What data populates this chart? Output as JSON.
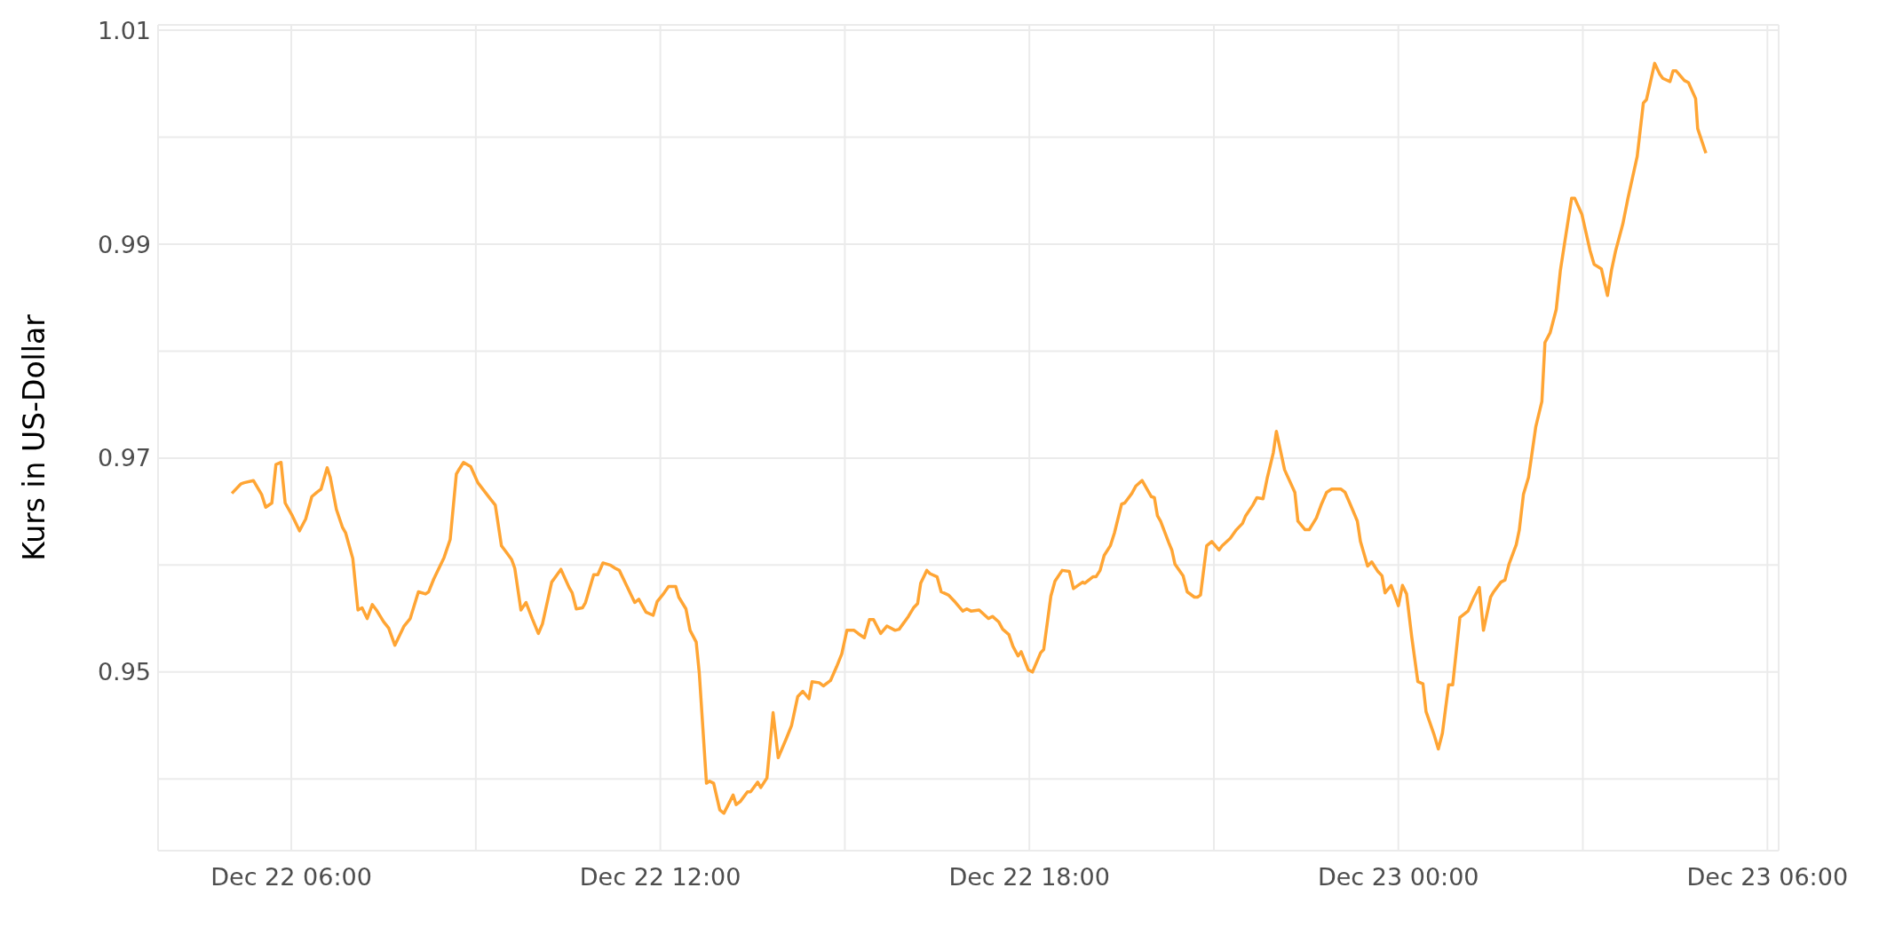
{
  "chart_data": {
    "type": "line",
    "ylabel": "Kurs in US-Dollar",
    "x": [
      "--12-22T05:02",
      "--12-22T05:11",
      "--12-22T05:14",
      "--12-22T05:23",
      "--12-22T05:31",
      "--12-22T05:35",
      "--12-22T05:41",
      "--12-22T05:45",
      "--12-22T05:50",
      "--12-22T05:54",
      "--12-22T06:01",
      "--12-22T06:08",
      "--12-22T06:14",
      "--12-22T06:20",
      "--12-22T06:25",
      "--12-22T06:29",
      "--12-22T06:35",
      "--12-22T06:38",
      "--12-22T06:44",
      "--12-22T06:50",
      "--12-22T06:53",
      "--12-22T07:00",
      "--12-22T07:05",
      "--12-22T07:09",
      "--12-22T07:14",
      "--12-22T07:19",
      "--12-22T07:23",
      "--12-22T07:30",
      "--12-22T07:35",
      "--12-22T07:41",
      "--12-22T07:44",
      "--12-22T07:50",
      "--12-22T07:56",
      "--12-22T08:04",
      "--12-22T08:11",
      "--12-22T08:14",
      "--12-22T08:19",
      "--12-22T08:29",
      "--12-22T08:35",
      "--12-22T08:41",
      "--12-22T08:44",
      "--12-22T08:48",
      "--12-22T08:55",
      "--12-22T09:02",
      "--12-22T09:14",
      "--12-22T09:19",
      "--12-22T09:25",
      "--12-22T09:29",
      "--12-22T09:35",
      "--12-22T09:38",
      "--12-22T09:44",
      "--12-22T09:49",
      "--12-22T09:55",
      "--12-22T10:01",
      "--12-22T10:05",
      "--12-22T10:14",
      "--12-22T10:20",
      "--12-22T10:23",
      "--12-22T10:31",
      "--12-22T10:34",
      "--12-22T10:38",
      "--12-22T10:44",
      "--12-22T10:47",
      "--12-22T10:55",
      "--12-22T10:59",
      "--12-22T11:04",
      "--12-22T11:11",
      "--12-22T11:16",
      "--12-22T11:20",
      "--12-22T11:27",
      "--12-22T11:35",
      "--12-22T11:39",
      "--12-22T11:46",
      "--12-22T11:53",
      "--12-22T11:57",
      "--12-22T12:03",
      "--12-22T12:08",
      "--12-22T12:15",
      "--12-22T12:18",
      "--12-22T12:25",
      "--12-22T12:29",
      "--12-22T12:35",
      "--12-22T12:38",
      "--12-22T12:45",
      "--12-22T12:48",
      "--12-22T12:52",
      "--12-22T12:58",
      "--12-22T13:02",
      "--12-22T13:11",
      "--12-22T13:14",
      "--12-22T13:18",
      "--12-22T13:25",
      "--12-22T13:28",
      "--12-22T13:35",
      "--12-22T13:38",
      "--12-22T13:44",
      "--12-22T13:50",
      "--12-22T13:55",
      "--12-22T14:03",
      "--12-22T14:08",
      "--12-22T14:14",
      "--12-22T14:19",
      "--12-22T14:25",
      "--12-22T14:28",
      "--12-22T14:35",
      "--12-22T14:39",
      "--12-22T14:46",
      "--12-22T14:52",
      "--12-22T14:57",
      "--12-22T15:02",
      "--12-22T15:09",
      "--12-22T15:13",
      "--12-22T15:19",
      "--12-22T15:24",
      "--12-22T15:28",
      "--12-22T15:35",
      "--12-22T15:41",
      "--12-22T15:49",
      "--12-22T15:53",
      "--12-22T16:02",
      "--12-22T16:07",
      "--12-22T16:11",
      "--12-22T16:14",
      "--12-22T16:20",
      "--12-22T16:23",
      "--12-22T16:30",
      "--12-22T16:34",
      "--12-22T16:41",
      "--12-22T16:48",
      "--12-22T16:55",
      "--12-22T16:59",
      "--12-22T17:03",
      "--12-22T17:11",
      "--12-22T17:20",
      "--12-22T17:24",
      "--12-22T17:30",
      "--12-22T17:34",
      "--12-22T17:40",
      "--12-22T17:44",
      "--12-22T17:49",
      "--12-22T17:52",
      "--12-22T17:59",
      "--12-22T18:03",
      "--12-22T18:11",
      "--12-22T18:14",
      "--12-22T18:21",
      "--12-22T18:25",
      "--12-22T18:32",
      "--12-22T18:39",
      "--12-22T18:43",
      "--12-22T18:52",
      "--12-22T18:54",
      "--12-22T19:02",
      "--12-22T19:05",
      "--12-22T19:09",
      "--12-22T19:13",
      "--12-22T19:19",
      "--12-22T19:23",
      "--12-22T19:30",
      "--12-22T19:33",
      "--12-22T19:40",
      "--12-22T19:44",
      "--12-22T19:50",
      "--12-22T19:59",
      "--12-22T20:02",
      "--12-22T20:05",
      "--12-22T20:08",
      "--12-22T20:16",
      "--12-22T20:19",
      "--12-22T20:22",
      "--12-22T20:30",
      "--12-22T20:34",
      "--12-22T20:41",
      "--12-22T20:44",
      "--12-22T20:47",
      "--12-22T20:53",
      "--12-22T20:58",
      "--12-22T21:05",
      "--12-22T21:08",
      "--12-22T21:16",
      "--12-22T21:22",
      "--12-22T21:28",
      "--12-22T21:31",
      "--12-22T21:38",
      "--12-22T21:42",
      "--12-22T21:48",
      "--12-22T21:52",
      "--12-22T21:58",
      "--12-22T22:01",
      "--12-22T22:09",
      "--12-22T22:19",
      "--12-22T22:22",
      "--12-22T22:29",
      "--12-22T22:33",
      "--12-22T22:40",
      "--12-22T22:45",
      "--12-22T22:50",
      "--12-22T22:55",
      "--12-22T23:04",
      "--12-22T23:08",
      "--12-22T23:13",
      "--12-22T23:20",
      "--12-22T23:23",
      "--12-22T23:30",
      "--12-22T23:34",
      "--12-22T23:40",
      "--12-22T23:44",
      "--12-22T23:47",
      "--12-22T23:53",
      "--12-23T00:00",
      "--12-23T00:04",
      "--12-23T00:08",
      "--12-23T00:13",
      "--12-23T00:19",
      "--12-23T00:24",
      "--12-23T00:27",
      "--12-23T00:35",
      "--12-23T00:39",
      "--12-23T00:43",
      "--12-23T00:49",
      "--12-23T00:53",
      "--12-23T01:00",
      "--12-23T01:08",
      "--12-23T01:14",
      "--12-23T01:19",
      "--12-23T01:23",
      "--12-23T01:30",
      "--12-23T01:33",
      "--12-23T01:40",
      "--12-23T01:44",
      "--12-23T01:48",
      "--12-23T01:55",
      "--12-23T01:58",
      "--12-23T02:02",
      "--12-23T02:07",
      "--12-23T02:14",
      "--12-23T02:20",
      "--12-23T02:23",
      "--12-23T02:28",
      "--12-23T02:34",
      "--12-23T02:38",
      "--12-23T02:42",
      "--12-23T02:49",
      "--12-23T02:52",
      "--12-23T02:59",
      "--12-23T03:07",
      "--12-23T03:11",
      "--12-23T03:18",
      "--12-23T03:24",
      "--12-23T03:28",
      "--12-23T03:32",
      "--12-23T03:39",
      "--12-23T03:44",
      "--12-23T03:53",
      "--12-23T03:59",
      "--12-23T04:02",
      "--12-23T04:10",
      "--12-23T04:15",
      "--12-23T04:18",
      "--12-23T04:25",
      "--12-23T04:28",
      "--12-23T04:31",
      "--12-23T04:39",
      "--12-23T04:43",
      "--12-23T04:50",
      "--12-23T04:52",
      "--12-23T05:00"
    ],
    "series": [
      {
        "color": "#ffa534",
        "values": [
          0.9667,
          0.9676,
          0.9677,
          0.9679,
          0.9666,
          0.9654,
          0.9658,
          0.9694,
          0.9696,
          0.9658,
          0.9646,
          0.9632,
          0.9643,
          0.9664,
          0.9668,
          0.9671,
          0.9691,
          0.9682,
          0.9652,
          0.9635,
          0.963,
          0.9606,
          0.9558,
          0.956,
          0.955,
          0.9563,
          0.9558,
          0.9547,
          0.9541,
          0.9525,
          0.9531,
          0.9543,
          0.955,
          0.9575,
          0.9573,
          0.9575,
          0.9587,
          0.9607,
          0.9624,
          0.9685,
          0.969,
          0.9696,
          0.9692,
          0.9677,
          0.9662,
          0.9656,
          0.9618,
          0.9613,
          0.9605,
          0.9597,
          0.9558,
          0.9565,
          0.955,
          0.9536,
          0.9545,
          0.9584,
          0.9592,
          0.9596,
          0.9579,
          0.9574,
          0.9559,
          0.956,
          0.9565,
          0.9591,
          0.9591,
          0.9602,
          0.96,
          0.9597,
          0.9595,
          0.9581,
          0.9565,
          0.9568,
          0.9556,
          0.9553,
          0.9566,
          0.9573,
          0.958,
          0.958,
          0.957,
          0.9559,
          0.9539,
          0.9528,
          0.9499,
          0.9396,
          0.9398,
          0.9396,
          0.9371,
          0.9368,
          0.9385,
          0.9376,
          0.9379,
          0.9388,
          0.9388,
          0.9397,
          0.9392,
          0.9401,
          0.9462,
          0.942,
          0.9438,
          0.945,
          0.9477,
          0.9482,
          0.9475,
          0.9491,
          0.949,
          0.9487,
          0.9492,
          0.9505,
          0.9517,
          0.9539,
          0.9539,
          0.9536,
          0.9532,
          0.9549,
          0.9549,
          0.9536,
          0.9543,
          0.9539,
          0.954,
          0.9552,
          0.956,
          0.9564,
          0.9583,
          0.9595,
          0.9592,
          0.9589,
          0.9575,
          0.9572,
          0.9565,
          0.9557,
          0.9559,
          0.9557,
          0.9558,
          0.955,
          0.9552,
          0.9547,
          0.954,
          0.9535,
          0.9524,
          0.9515,
          0.9519,
          0.9502,
          0.95,
          0.9518,
          0.9521,
          0.9571,
          0.9585,
          0.9595,
          0.9594,
          0.9578,
          0.9584,
          0.9583,
          0.9589,
          0.9589,
          0.9595,
          0.9609,
          0.9618,
          0.963,
          0.9657,
          0.9658,
          0.9667,
          0.9674,
          0.9679,
          0.9664,
          0.9663,
          0.9646,
          0.9641,
          0.9621,
          0.9614,
          0.9601,
          0.959,
          0.9575,
          0.957,
          0.957,
          0.9572,
          0.9618,
          0.9622,
          0.9614,
          0.9618,
          0.9625,
          0.9633,
          0.9639,
          0.9646,
          0.9656,
          0.9663,
          0.9662,
          0.9681,
          0.9705,
          0.9725,
          0.9689,
          0.9668,
          0.9641,
          0.9633,
          0.9633,
          0.9644,
          0.9657,
          0.9668,
          0.9671,
          0.9671,
          0.9668,
          0.9657,
          0.9641,
          0.9622,
          0.9599,
          0.9603,
          0.9594,
          0.959,
          0.9574,
          0.9581,
          0.9562,
          0.9581,
          0.9573,
          0.9533,
          0.9491,
          0.9489,
          0.9463,
          0.9441,
          0.9428,
          0.9443,
          0.9488,
          0.9488,
          0.9551,
          0.9557,
          0.957,
          0.9579,
          0.9539,
          0.957,
          0.9575,
          0.9584,
          0.9586,
          0.9601,
          0.9619,
          0.9633,
          0.9666,
          0.9682,
          0.9729,
          0.9753,
          0.9808,
          0.9817,
          0.9839,
          0.9875,
          0.99,
          0.9943,
          0.9943,
          0.9928,
          0.9894,
          0.9881,
          0.9877,
          0.9852,
          0.9876,
          0.9894,
          0.9919,
          0.9943,
          0.9982,
          1.0032,
          1.0035,
          1.0069,
          1.0059,
          1.0055,
          1.0052,
          1.0062,
          1.0062,
          1.0053,
          1.0051,
          1.0036,
          1.0008,
          0.9985
        ]
      }
    ],
    "xlim": [
      "--12-22T03:50",
      "--12-23T06:11"
    ],
    "xticks": [
      {
        "value": "--12-22T06:00",
        "label": "Dec 22 06:00"
      },
      {
        "value": "--12-22T09:00",
        "label": null
      },
      {
        "value": "--12-22T12:00",
        "label": "Dec 22 12:00"
      },
      {
        "value": "--12-22T15:00",
        "label": null
      },
      {
        "value": "--12-22T18:00",
        "label": "Dec 22 18:00"
      },
      {
        "value": "--12-22T21:00",
        "label": null
      },
      {
        "value": "--12-23T00:00",
        "label": "Dec 23 00:00"
      },
      {
        "value": "--12-23T03:00",
        "label": null
      },
      {
        "value": "--12-23T06:00",
        "label": "Dec 23 06:00"
      }
    ],
    "ylim": [
      0.9333,
      1.0105
    ],
    "yticks": [
      {
        "value": 0.94,
        "label": null
      },
      0.95,
      {
        "value": 0.96,
        "label": null
      },
      0.97,
      {
        "value": 0.98,
        "label": null
      },
      0.99,
      {
        "value": 1.0,
        "label": null
      },
      1.01
    ],
    "grid": true,
    "marker": "none",
    "line_style": "solid"
  }
}
